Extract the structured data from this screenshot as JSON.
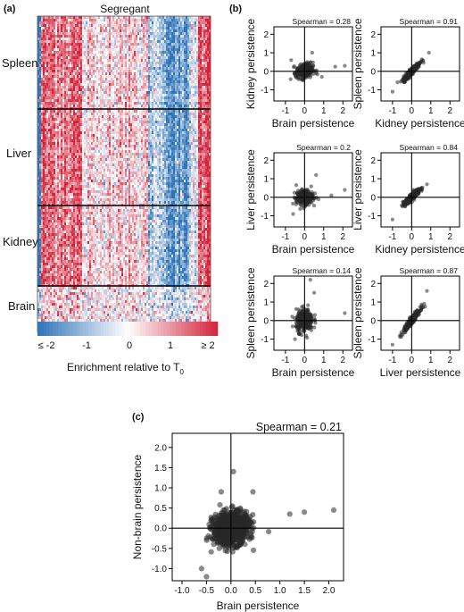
{
  "panel_labels": {
    "a": "(a)",
    "b": "(b)",
    "c": "(c)"
  },
  "heatmap": {
    "title": "Segregant",
    "groups": [
      "Spleen",
      "Liver",
      "Kidney",
      "Brain"
    ],
    "colorbar_ticks": [
      "≤ -2",
      "-1",
      "0",
      "1",
      "≥ 2"
    ],
    "colorbar_label_main": "Enrichment relative to T",
    "colorbar_label_sub": "0",
    "colors": {
      "low": "#2f73b7",
      "mid": "#ffffff",
      "high": "#d2233a"
    }
  },
  "chart_data": [
    {
      "type": "heatmap",
      "title": "Segregant",
      "row_groups": [
        "Spleen",
        "Liver",
        "Kidney",
        "Brain"
      ],
      "color_scale": {
        "min_label": "≤ -2",
        "max_label": "≥ 2",
        "ticks": [
          -2,
          -1,
          0,
          1,
          2
        ]
      },
      "colorbar_label": "Enrichment relative to T0"
    },
    {
      "type": "scatter",
      "xlabel": "Brain persistence",
      "ylabel": "Kidney persistence",
      "annotation": "Spearman = 0.28",
      "xlim": [
        -1.6,
        2.5
      ],
      "ylim": [
        -1.6,
        2.4
      ],
      "xticks": [
        -1,
        0,
        1,
        2
      ],
      "yticks": [
        -1,
        0,
        1,
        2
      ],
      "spearman": 0.28
    },
    {
      "type": "scatter",
      "xlabel": "Kidney persistence",
      "ylabel": "Spleen persistence",
      "annotation": "Spearman = 0.91",
      "xlim": [
        -1.6,
        2.5
      ],
      "ylim": [
        -1.6,
        2.4
      ],
      "xticks": [
        -1,
        0,
        1,
        2
      ],
      "yticks": [
        -1,
        0,
        1,
        2
      ],
      "spearman": 0.91
    },
    {
      "type": "scatter",
      "xlabel": "Brain persistence",
      "ylabel": "Liver persistence",
      "annotation": "Spearman = 0.2",
      "xlim": [
        -1.6,
        2.5
      ],
      "ylim": [
        -1.6,
        2.4
      ],
      "xticks": [
        -1,
        0,
        1,
        2
      ],
      "yticks": [
        -1,
        0,
        1,
        2
      ],
      "spearman": 0.2
    },
    {
      "type": "scatter",
      "xlabel": "Kidney persistence",
      "ylabel": "Liver persistence",
      "annotation": "Spearman = 0.84",
      "xlim": [
        -1.6,
        2.5
      ],
      "ylim": [
        -1.6,
        2.4
      ],
      "xticks": [
        -1,
        0,
        1,
        2
      ],
      "yticks": [
        -1,
        0,
        1,
        2
      ],
      "spearman": 0.84
    },
    {
      "type": "scatter",
      "xlabel": "Brain persistence",
      "ylabel": "Spleen persistence",
      "annotation": "Spearman = 0.14",
      "xlim": [
        -1.6,
        2.5
      ],
      "ylim": [
        -1.6,
        2.4
      ],
      "xticks": [
        -1,
        0,
        1,
        2
      ],
      "yticks": [
        -1,
        0,
        1,
        2
      ],
      "spearman": 0.14
    },
    {
      "type": "scatter",
      "xlabel": "Liver persistence",
      "ylabel": "Spleen persistence",
      "annotation": "Spearman = 0.87",
      "xlim": [
        -1.6,
        2.5
      ],
      "ylim": [
        -1.6,
        2.4
      ],
      "xticks": [
        -1,
        0,
        1,
        2
      ],
      "yticks": [
        -1,
        0,
        1,
        2
      ],
      "spearman": 0.87
    },
    {
      "type": "scatter",
      "xlabel": "Brain persistence",
      "ylabel": "Non-brain persistence",
      "annotation": "Spearman = 0.21",
      "xlim": [
        -1.2,
        2.3
      ],
      "ylim": [
        -1.3,
        2.35
      ],
      "xticks": [
        -1.0,
        -0.5,
        0.0,
        0.5,
        1.0,
        1.5,
        2.0
      ],
      "yticks": [
        -1.0,
        -0.5,
        0.0,
        0.5,
        1.0,
        1.5,
        2.0
      ],
      "xtick_labels": [
        "-1.0",
        "-0.5",
        "0.0",
        "0.5",
        "1.0",
        "1.5",
        "2.0"
      ],
      "ytick_labels": [
        "-1.0",
        "-0.5",
        "0.0",
        "0.5",
        "1.0",
        "1.5",
        "2.0"
      ],
      "spearman": 0.21
    }
  ]
}
